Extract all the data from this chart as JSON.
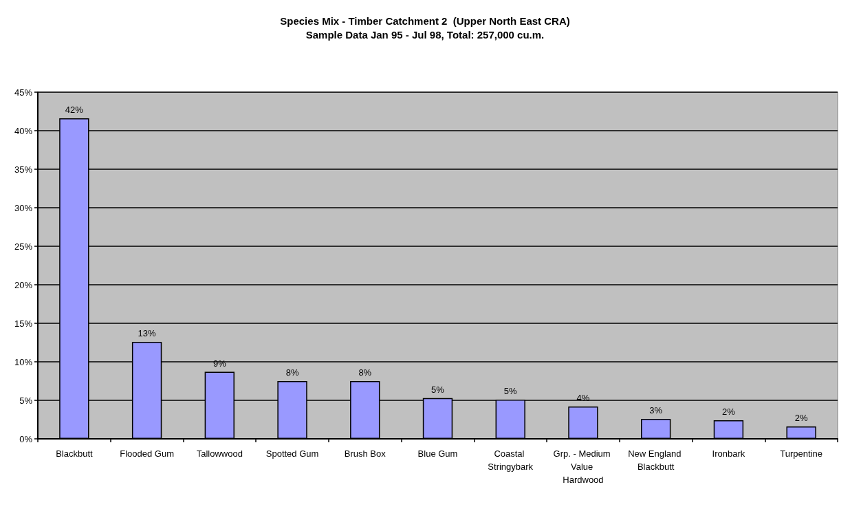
{
  "chart_data": {
    "type": "bar",
    "title": "Species Mix - Timber Catchment 2  (Upper North East CRA)",
    "subtitle": "Sample Data Jan 95 - Jul 98, Total: 257,000 cu.m.",
    "categories": [
      "Blackbutt",
      "Flooded Gum",
      "Tallowwood",
      "Spotted Gum",
      "Brush Box",
      "Blue Gum",
      "Coastal Stringybark",
      "Grp. - Medium Value Hardwood",
      "New England Blackbutt",
      "Ironbark",
      "Turpentine"
    ],
    "values": [
      41.6,
      12.6,
      8.7,
      7.5,
      7.5,
      5.3,
      5.1,
      4.2,
      2.6,
      2.4,
      1.6
    ],
    "value_labels": [
      "42%",
      "13%",
      "9%",
      "8%",
      "8%",
      "5%",
      "5%",
      "4%",
      "3%",
      "2%",
      "2%"
    ],
    "color": "#9999ff",
    "ylim": [
      0,
      45
    ],
    "yticks": [
      {
        "value": 0,
        "label": "0%"
      },
      {
        "value": 5,
        "label": "5%"
      },
      {
        "value": 10,
        "label": "10%"
      },
      {
        "value": 15,
        "label": "15%"
      },
      {
        "value": 20,
        "label": "20%"
      },
      {
        "value": 25,
        "label": "25%"
      },
      {
        "value": 30,
        "label": "30%"
      },
      {
        "value": 35,
        "label": "35%"
      },
      {
        "value": 40,
        "label": "40%"
      },
      {
        "value": 45,
        "label": "45%"
      }
    ],
    "grid": "y"
  }
}
